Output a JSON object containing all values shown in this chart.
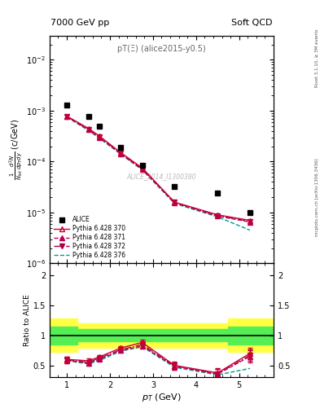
{
  "title_left": "7000 GeV pp",
  "title_right": "Soft QCD",
  "plot_label": "pT(Ξ) (alice2015-y0.5)",
  "watermark": "ALICE_2014_I1300380",
  "right_label": "Rivet 3.1.10, ≥ 3M events",
  "right_label2": "mcplots.cern.ch [arXiv:1306.3436]",
  "alice_pt": [
    1.0,
    1.5,
    1.75,
    2.25,
    2.75,
    3.5,
    4.5,
    5.25
  ],
  "alice_val": [
    0.0013,
    0.00078,
    0.0005,
    0.00019,
    8.5e-05,
    3.2e-05,
    2.4e-05,
    1e-05
  ],
  "py370_val": [
    0.00078,
    0.00045,
    0.00032,
    0.00015,
    7.5e-05,
    1.6e-05,
    9e-06,
    7e-06
  ],
  "py371_val": [
    0.00076,
    0.00042,
    0.0003,
    0.000142,
    7e-05,
    1.55e-05,
    8.5e-06,
    6.5e-06
  ],
  "py372_val": [
    0.00077,
    0.00043,
    0.00031,
    0.000145,
    7.2e-05,
    1.58e-05,
    8.7e-06,
    6.7e-06
  ],
  "py376_val": [
    0.00075,
    0.00041,
    0.00029,
    0.00014,
    6.9e-05,
    1.5e-05,
    8.2e-06,
    4.5e-06
  ],
  "color_370": "#cc0033",
  "color_371": "#bb0055",
  "color_372": "#aa0044",
  "color_376": "#009999",
  "ylim_main": [
    1e-06,
    0.03
  ],
  "ylim_ratio": [
    0.3,
    2.2
  ],
  "xlim": [
    0.6,
    5.8
  ],
  "band_green_lo": 0.9,
  "band_green_hi": 1.1,
  "band_yellow_lo": 0.8,
  "band_yellow_hi": 1.2,
  "band_yellow_lo_first": 0.72,
  "band_yellow_hi_first": 1.28,
  "band_green_lo_first": 0.85,
  "band_green_hi_first": 1.15
}
